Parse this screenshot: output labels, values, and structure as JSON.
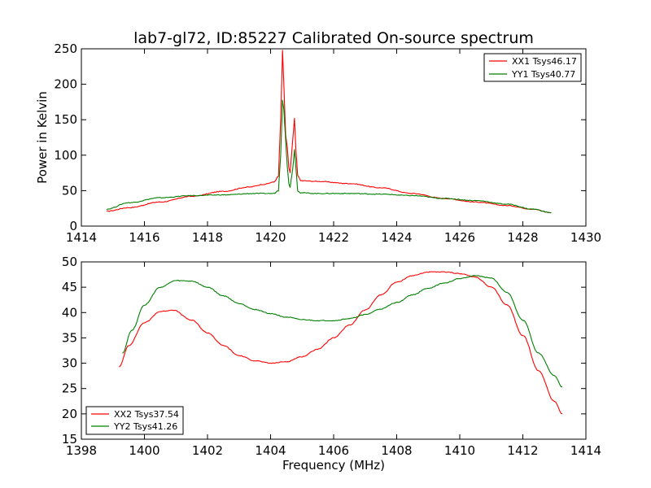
{
  "chart_data": [
    {
      "type": "line",
      "title": "lab7-gl72, ID:85227 Calibrated On-source spectrum",
      "xlabel": "",
      "ylabel": "Power in Kelvin",
      "xlim": [
        1414,
        1430
      ],
      "ylim": [
        0,
        250
      ],
      "xticks": [
        "1414",
        "1416",
        "1418",
        "1420",
        "1422",
        "1424",
        "1426",
        "1428",
        "1430"
      ],
      "yticks": [
        "0",
        "50",
        "100",
        "150",
        "200",
        "250"
      ],
      "grid": false,
      "legend_position": "top-right",
      "series": [
        {
          "name": "XX1 Tsys46.17",
          "color": "#ff0000",
          "x": [
            1414.8,
            1415.5,
            1416.5,
            1417.5,
            1418.5,
            1419.3,
            1419.8,
            1420.1,
            1420.25,
            1420.32,
            1420.38,
            1420.42,
            1420.48,
            1420.53,
            1420.58,
            1420.62,
            1420.7,
            1420.76,
            1420.8,
            1420.86,
            1420.95,
            1421.5,
            1422.5,
            1423.5,
            1424.5,
            1425.5,
            1426.5,
            1427.5,
            1428.3,
            1428.9
          ],
          "y": [
            21,
            26,
            34,
            42,
            49,
            55,
            59,
            62,
            70,
            150,
            248,
            200,
            128,
            112,
            82,
            75,
            120,
            152,
            110,
            72,
            64,
            63,
            60,
            54,
            46,
            39,
            34,
            29,
            24,
            19
          ]
        },
        {
          "name": "YY1 Tsys40.77",
          "color": "#008000",
          "x": [
            1414.8,
            1415.5,
            1416.5,
            1417.5,
            1418.5,
            1419.5,
            1420.1,
            1420.25,
            1420.32,
            1420.38,
            1420.42,
            1420.48,
            1420.53,
            1420.58,
            1420.62,
            1420.7,
            1420.76,
            1420.8,
            1420.86,
            1420.95,
            1421.5,
            1422.5,
            1423.5,
            1424.5,
            1425.5,
            1426.5,
            1427.5,
            1428.3,
            1428.9
          ],
          "y": [
            24,
            33,
            40,
            43,
            44,
            46,
            46,
            50,
            100,
            178,
            165,
            120,
            85,
            60,
            55,
            80,
            108,
            85,
            50,
            47,
            46,
            46,
            45,
            43,
            39,
            36,
            31,
            24,
            19
          ]
        }
      ]
    },
    {
      "type": "line",
      "title": "",
      "xlabel": "Frequency (MHz)",
      "ylabel": "",
      "xlim": [
        1398,
        1414
      ],
      "ylim": [
        15,
        50
      ],
      "xticks": [
        "1398",
        "1400",
        "1402",
        "1404",
        "1406",
        "1408",
        "1410",
        "1412",
        "1414"
      ],
      "yticks": [
        "15",
        "20",
        "25",
        "30",
        "35",
        "40",
        "45",
        "50"
      ],
      "grid": false,
      "legend_position": "bottom-left",
      "series": [
        {
          "name": "XX2 Tsys37.54",
          "color": "#ff0000",
          "x": [
            1399.2,
            1399.5,
            1400.0,
            1400.5,
            1400.9,
            1401.5,
            1402.0,
            1402.5,
            1403.0,
            1403.5,
            1404.0,
            1404.5,
            1405.0,
            1405.5,
            1406.0,
            1406.5,
            1407.0,
            1407.5,
            1408.0,
            1408.5,
            1409.0,
            1409.5,
            1410.0,
            1410.5,
            1411.0,
            1411.5,
            1412.0,
            1412.5,
            1413.0,
            1413.25
          ],
          "y": [
            29.3,
            33.5,
            38.0,
            40.2,
            40.5,
            38.5,
            36.0,
            33.5,
            31.5,
            30.5,
            30.0,
            30.3,
            31.3,
            32.8,
            35.0,
            37.5,
            40.5,
            43.5,
            46.0,
            47.3,
            48.0,
            48.0,
            47.7,
            47.0,
            45.0,
            41.5,
            35.5,
            28.5,
            22.5,
            20.0
          ]
        },
        {
          "name": "YY2 Tsys41.26",
          "color": "#008000",
          "x": [
            1399.3,
            1399.6,
            1400.0,
            1400.5,
            1401.0,
            1401.5,
            1402.0,
            1402.5,
            1403.0,
            1403.5,
            1404.0,
            1404.5,
            1405.0,
            1405.5,
            1406.0,
            1406.5,
            1407.0,
            1407.5,
            1408.0,
            1408.5,
            1409.0,
            1409.5,
            1410.0,
            1410.5,
            1411.0,
            1411.5,
            1412.0,
            1412.5,
            1413.0,
            1413.25
          ],
          "y": [
            32.0,
            36.5,
            41.5,
            45.0,
            46.3,
            46.2,
            45.0,
            43.3,
            41.8,
            40.6,
            39.8,
            39.1,
            38.6,
            38.4,
            38.4,
            38.8,
            39.6,
            40.7,
            42.0,
            43.5,
            44.8,
            45.8,
            46.7,
            47.3,
            46.8,
            44.0,
            38.5,
            32.0,
            27.5,
            25.3
          ]
        }
      ]
    }
  ]
}
